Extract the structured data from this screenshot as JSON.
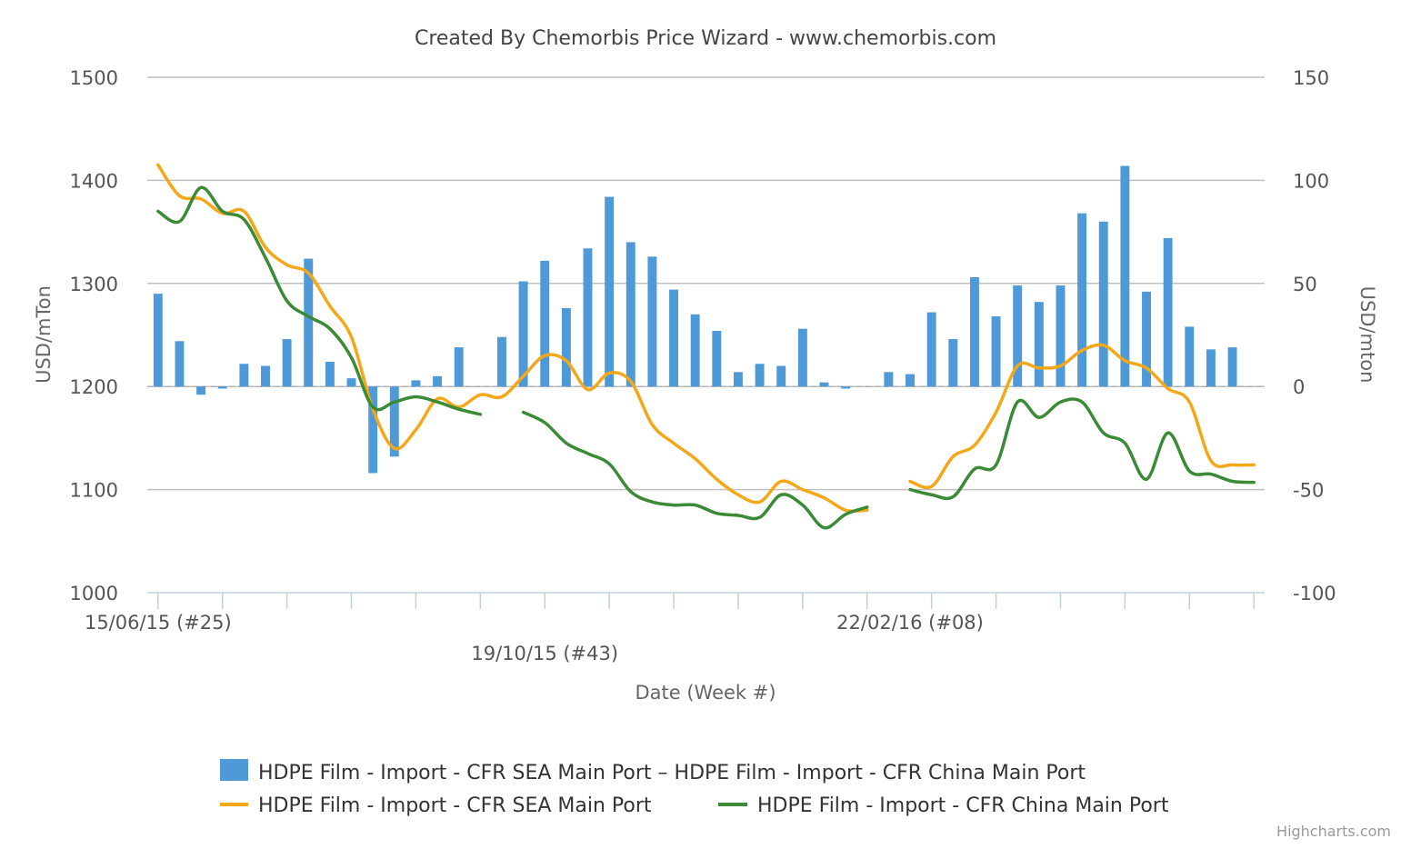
{
  "title": "Created By Chemorbis Price Wizard - www.chemorbis.com",
  "credit": "Highcharts.com",
  "colors": {
    "bar": "#4e9ad8",
    "sea": "#f5a71a",
    "china": "#3a8a36",
    "grid": "#c0c0c0",
    "axis_text": "#555555"
  },
  "chart_data": {
    "type": "bar+line",
    "title": "Created By Chemorbis Price Wizard - www.chemorbis.com",
    "xlabel": "Date (Week #)",
    "ylabel_left": "USD/mTon",
    "ylabel_right": "USD/mton",
    "ylim_left": [
      1000,
      1500
    ],
    "ylim_right": [
      -100,
      150
    ],
    "yticks_left": [
      1000,
      1100,
      1200,
      1300,
      1400,
      1500
    ],
    "yticks_right": [
      -100,
      -50,
      0,
      50,
      100,
      150
    ],
    "x_tick_labels": [
      {
        "index": 0,
        "label": "15/06/15 (#25)",
        "row": 0
      },
      {
        "index": 18,
        "label": "19/10/15 (#43)",
        "row": 1
      },
      {
        "index": 35,
        "label": "22/02/16 (#08)",
        "row": 0
      }
    ],
    "n_weeks": 52,
    "grid": true,
    "legend_position": "bottom-center",
    "series": [
      {
        "name": "HDPE Film - Import - CFR SEA Main Port – HDPE Film - Import - CFR China Main Port",
        "type": "column",
        "axis": "right",
        "values": [
          45,
          22,
          -4,
          -1,
          11,
          10,
          23,
          62,
          12,
          4,
          -42,
          -34,
          3,
          5,
          19,
          null,
          24,
          51,
          61,
          38,
          67,
          92,
          70,
          63,
          47,
          35,
          27,
          7,
          11,
          10,
          28,
          2,
          -1,
          null,
          7,
          6,
          36,
          23,
          53,
          34,
          49,
          41,
          49,
          84,
          80,
          107,
          46,
          72,
          29,
          18,
          19,
          null
        ]
      },
      {
        "name": "HDPE Film - Import - CFR SEA Main Port",
        "type": "line",
        "axis": "left",
        "values": [
          1415,
          1385,
          1382,
          1368,
          1370,
          1335,
          1318,
          1310,
          1278,
          1248,
          1178,
          1140,
          1158,
          1188,
          1180,
          1192,
          1190,
          1210,
          1230,
          1225,
          1197,
          1213,
          1205,
          1163,
          1145,
          1130,
          1110,
          1095,
          1088,
          1108,
          1100,
          1092,
          1080,
          1080,
          null,
          1108,
          1103,
          1132,
          1143,
          1175,
          1220,
          1218,
          1220,
          1235,
          1240,
          1225,
          1218,
          1198,
          1185,
          1128,
          1124,
          1124
        ]
      },
      {
        "name": "HDPE Film - Import - CFR China Main Port",
        "type": "line",
        "axis": "left",
        "values": [
          1370,
          1360,
          1393,
          1370,
          1362,
          1325,
          1283,
          1268,
          1256,
          1228,
          1180,
          1185,
          1190,
          1185,
          1178,
          1173,
          null,
          1175,
          1165,
          1145,
          1135,
          1125,
          1098,
          1088,
          1085,
          1085,
          1077,
          1075,
          1073,
          1095,
          1085,
          1063,
          1076,
          1083,
          null,
          1100,
          1095,
          1093,
          1120,
          1124,
          1185,
          1170,
          1185,
          1185,
          1155,
          1145,
          1110,
          1155,
          1118,
          1115,
          1108,
          1107
        ]
      }
    ]
  },
  "legend": [
    {
      "label": "HDPE Film - Import - CFR SEA Main Port – HDPE Film - Import - CFR China Main Port",
      "symbol": "bar",
      "color": "#4e9ad8"
    },
    {
      "label": "HDPE Film - Import - CFR SEA Main Port",
      "symbol": "line",
      "color": "#f5a71a"
    },
    {
      "label": "HDPE Film - Import - CFR China Main Port",
      "symbol": "line",
      "color": "#3a8a36"
    }
  ]
}
